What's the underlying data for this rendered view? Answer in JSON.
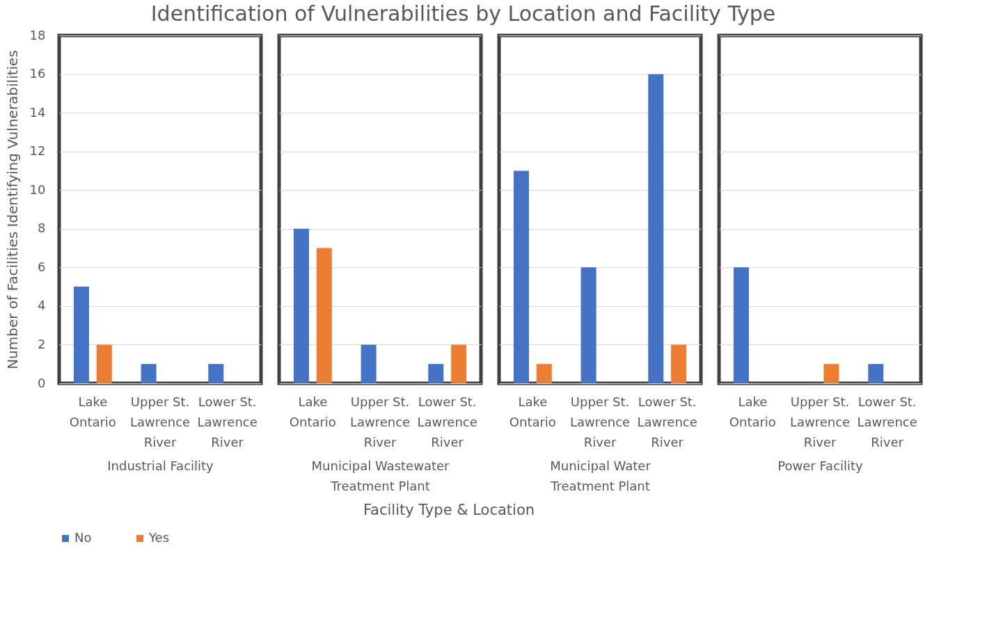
{
  "chart_data": [
    {
      "type": "bar",
      "title": "Identification of Vulnerabilities by Location and Facility Type",
      "xlabel": "Industrial Facility",
      "ylabel": "Number of Facilities Identifying Vulnerabilities",
      "annotations": [
        "Facility Type & Location"
      ],
      "legend": "bottom",
      "grid": "y",
      "ylim": [
        0,
        18
      ],
      "yticks": [
        0,
        2,
        4,
        6,
        8,
        10,
        12,
        14,
        16,
        18
      ],
      "categories": [
        "Lake Ontario",
        "Upper St. Lawrence River",
        "Lower St. Lawrence River"
      ],
      "series": [
        {
          "name": "No",
          "color": "#4472c4",
          "values": [
            5,
            1,
            1
          ]
        },
        {
          "name": "Yes",
          "color": "#ed7d31",
          "values": [
            2,
            0,
            0
          ]
        }
      ]
    },
    {
      "type": "bar",
      "xlabel": "Municipal Wastewater Treatment Plant",
      "grid": "y",
      "tick_labels": "x",
      "ylim": [
        0,
        18
      ],
      "yticks": [
        0,
        2,
        4,
        6,
        8,
        10,
        12,
        14,
        16,
        18
      ],
      "categories": [
        "Lake Ontario",
        "Upper St. Lawrence River",
        "Lower St. Lawrence River"
      ],
      "series": [
        {
          "name": "No",
          "color": "#4472c4",
          "values": [
            8,
            2,
            1
          ]
        },
        {
          "name": "Yes",
          "color": "#ed7d31",
          "values": [
            7,
            0,
            2
          ]
        }
      ]
    },
    {
      "type": "bar",
      "xlabel": "Municipal Water Treatment Plant",
      "grid": "y",
      "tick_labels": "x",
      "ylim": [
        0,
        18
      ],
      "yticks": [
        0,
        2,
        4,
        6,
        8,
        10,
        12,
        14,
        16,
        18
      ],
      "categories": [
        "Lake Ontario",
        "Upper St. Lawrence River",
        "Lower St. Lawrence River"
      ],
      "series": [
        {
          "name": "No",
          "color": "#4472c4",
          "values": [
            11,
            6,
            16
          ]
        },
        {
          "name": "Yes",
          "color": "#ed7d31",
          "values": [
            1,
            0,
            2
          ]
        }
      ]
    },
    {
      "type": "bar",
      "xlabel": "Power Facility",
      "grid": "y",
      "tick_labels": "x",
      "ylim": [
        0,
        18
      ],
      "yticks": [
        0,
        2,
        4,
        6,
        8,
        10,
        12,
        14,
        16,
        18
      ],
      "categories": [
        "Lake Ontario",
        "Upper St. Lawrence River",
        "Lower St. Lawrence River"
      ],
      "series": [
        {
          "name": "No",
          "color": "#4472c4",
          "values": [
            6,
            0,
            1
          ]
        },
        {
          "name": "Yes",
          "color": "#ed7d31",
          "values": [
            0,
            1,
            0
          ]
        }
      ]
    }
  ]
}
